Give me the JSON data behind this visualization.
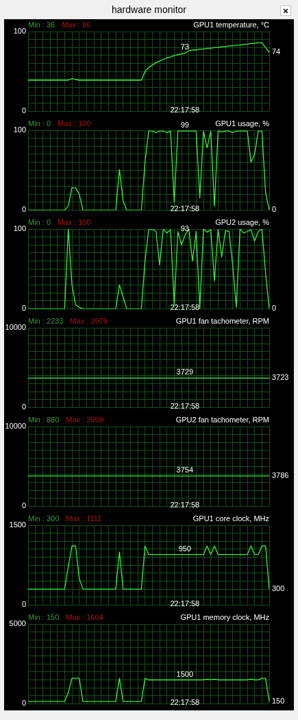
{
  "chart_data": [
    {
      "type": "other",
      "title": "hardware monitor"
    },
    {
      "type": "line",
      "title": "GPU1 temperature, °C",
      "categories": [
        null,
        null,
        null,
        null,
        null,
        null,
        null,
        null,
        null,
        null,
        null,
        null,
        null,
        null,
        null,
        null,
        null,
        null,
        null,
        null,
        null,
        null,
        null,
        null,
        null,
        null,
        null,
        null,
        null,
        null,
        null,
        null,
        null,
        null,
        null,
        null,
        null,
        null,
        null,
        null,
        null,
        null,
        null,
        null,
        null,
        null,
        null,
        null,
        null,
        null,
        null,
        null,
        null,
        null,
        null,
        null,
        null,
        null,
        null,
        null,
        null,
        null,
        null,
        null,
        null,
        null,
        null
      ],
      "series": [
        {
          "color": "#3cf03c",
          "values": [
            39,
            39,
            39,
            39,
            39,
            39,
            39,
            39,
            39,
            39,
            39,
            39,
            41,
            40,
            39,
            39,
            39,
            39,
            39,
            39,
            39,
            39,
            39,
            39,
            39,
            39,
            39,
            39,
            39,
            39,
            39,
            39,
            50,
            55,
            58,
            61,
            63,
            65,
            67,
            68,
            70,
            71,
            72,
            73,
            76,
            77,
            77,
            78,
            78,
            79,
            79,
            80,
            80,
            81,
            81,
            82,
            82,
            83,
            83,
            84,
            84,
            85,
            85,
            86,
            86,
            80,
            74
          ]
        }
      ],
      "ylim": [
        0,
        100
      ],
      "yticks": [
        0,
        {
          "value": 10,
          "label": null
        },
        {
          "value": 20,
          "label": null
        },
        {
          "value": 30,
          "label": null
        },
        {
          "value": 40,
          "label": null
        },
        {
          "value": 50,
          "label": null
        },
        {
          "value": 60,
          "label": null
        },
        {
          "value": 70,
          "label": null
        },
        {
          "value": 80,
          "label": null
        },
        {
          "value": 90,
          "label": null
        },
        100
      ],
      "grid": true,
      "annotations": [
        "Min : 36",
        "Max : 86",
        "22:17:58",
        "74",
        {
          "text": "73",
          "y": 73
        }
      ]
    },
    {
      "type": "line",
      "title": "GPU1 usage, %",
      "categories": [
        null,
        null,
        null,
        null,
        null,
        null,
        null,
        null,
        null,
        null,
        null,
        null,
        null,
        null,
        null,
        null,
        null,
        null,
        null,
        null,
        null,
        null,
        null,
        null,
        null,
        null,
        null,
        null,
        null,
        null,
        null,
        null,
        null,
        null,
        null,
        null,
        null,
        null,
        null,
        null,
        null,
        null,
        null,
        null,
        null,
        null,
        null,
        null,
        null,
        null,
        null,
        null,
        null,
        null,
        null,
        null,
        null,
        null,
        null,
        null,
        null,
        null,
        null,
        null,
        null,
        null,
        null
      ],
      "series": [
        {
          "color": "#3cf03c",
          "values": [
            0,
            0,
            0,
            0,
            0,
            0,
            0,
            0,
            0,
            0,
            0,
            5,
            28,
            28,
            20,
            0,
            0,
            0,
            0,
            0,
            0,
            0,
            0,
            0,
            0,
            51,
            12,
            0,
            0,
            0,
            0,
            0,
            60,
            99,
            99,
            97,
            99,
            99,
            97,
            99,
            10,
            99,
            99,
            99,
            99,
            99,
            99,
            15,
            99,
            78,
            99,
            5,
            99,
            98,
            99,
            99,
            97,
            99,
            99,
            99,
            99,
            60,
            70,
            99,
            99,
            22,
            0
          ]
        }
      ],
      "ylim": [
        0,
        100
      ],
      "yticks": [
        0,
        {
          "value": 10,
          "label": null
        },
        {
          "value": 20,
          "label": null
        },
        {
          "value": 30,
          "label": null
        },
        {
          "value": 40,
          "label": null
        },
        {
          "value": 50,
          "label": null
        },
        {
          "value": 60,
          "label": null
        },
        {
          "value": 70,
          "label": null
        },
        {
          "value": 80,
          "label": null
        },
        {
          "value": 90,
          "label": null
        },
        100
      ],
      "grid": true,
      "annotations": [
        "Min : 0",
        "Max : 100",
        "22:17:58",
        "0",
        {
          "text": "99",
          "y": 99
        }
      ]
    },
    {
      "type": "line",
      "title": "GPU2 usage, %",
      "categories": [
        null,
        null,
        null,
        null,
        null,
        null,
        null,
        null,
        null,
        null,
        null,
        null,
        null,
        null,
        null,
        null,
        null,
        null,
        null,
        null,
        null,
        null,
        null,
        null,
        null,
        null,
        null,
        null,
        null,
        null,
        null,
        null,
        null,
        null,
        null,
        null,
        null,
        null,
        null,
        null,
        null,
        null,
        null,
        null,
        null,
        null,
        null,
        null,
        null,
        null,
        null,
        null,
        null,
        null,
        null,
        null,
        null,
        null,
        null,
        null,
        null,
        null,
        null,
        null,
        null,
        null,
        null
      ],
      "series": [
        {
          "color": "#3cf03c",
          "values": [
            0,
            0,
            0,
            0,
            0,
            0,
            0,
            0,
            0,
            0,
            0,
            100,
            30,
            5,
            2,
            0,
            0,
            0,
            0,
            0,
            0,
            0,
            0,
            0,
            0,
            30,
            15,
            0,
            0,
            0,
            0,
            0,
            60,
            99,
            100,
            97,
            55,
            100,
            95,
            99,
            5,
            97,
            80,
            93,
            100,
            60,
            97,
            0,
            100,
            96,
            99,
            35,
            100,
            65,
            98,
            97,
            55,
            2,
            100,
            95,
            97,
            99,
            85,
            97,
            100,
            45,
            0
          ]
        }
      ],
      "ylim": [
        0,
        100
      ],
      "yticks": [
        0,
        {
          "value": 10,
          "label": null
        },
        {
          "value": 20,
          "label": null
        },
        {
          "value": 30,
          "label": null
        },
        {
          "value": 40,
          "label": null
        },
        {
          "value": 50,
          "label": null
        },
        {
          "value": 60,
          "label": null
        },
        {
          "value": 70,
          "label": null
        },
        {
          "value": 80,
          "label": null
        },
        {
          "value": 90,
          "label": null
        },
        100
      ],
      "grid": true,
      "annotations": [
        "Min : 0",
        "Max : 100",
        "22:17:58",
        "0",
        {
          "text": "93",
          "y": 93
        }
      ]
    },
    {
      "type": "line",
      "title": "GPU1 fan tachometer, RPM",
      "categories": [
        null,
        null,
        null,
        null,
        null,
        null,
        null,
        null,
        null,
        null,
        null,
        null,
        null,
        null,
        null,
        null,
        null,
        null,
        null,
        null,
        null,
        null,
        null,
        null,
        null,
        null,
        null,
        null,
        null,
        null,
        null,
        null,
        null,
        null,
        null,
        null,
        null,
        null,
        null,
        null,
        null,
        null,
        null,
        null,
        null,
        null,
        null,
        null,
        null,
        null,
        null,
        null,
        null,
        null,
        null,
        null,
        null,
        null,
        null,
        null,
        null,
        null,
        null,
        null,
        null,
        null,
        null
      ],
      "series": [
        {
          "color": "#3cf03c",
          "values": [
            3700,
            3700,
            3700,
            3700,
            3700,
            3700,
            3700,
            3700,
            3700,
            3700,
            3700,
            3700,
            3700,
            3700,
            3700,
            3700,
            3700,
            3700,
            3700,
            3700,
            3700,
            3700,
            3700,
            3700,
            3700,
            3700,
            3700,
            3700,
            3700,
            3700,
            3700,
            3700,
            3700,
            3700,
            3700,
            3700,
            3700,
            3700,
            3700,
            3700,
            3700,
            3700,
            3700,
            3700,
            3700,
            3700,
            3700,
            3700,
            3700,
            3700,
            3700,
            3700,
            3700,
            3700,
            3700,
            3700,
            3700,
            3700,
            3700,
            3700,
            3700,
            3700,
            3700,
            3700,
            3700,
            3700,
            3700
          ]
        }
      ],
      "ylim": [
        0,
        10000
      ],
      "yticks": [
        0,
        {
          "value": 1000,
          "label": null
        },
        {
          "value": 2000,
          "label": null
        },
        {
          "value": 3000,
          "label": null
        },
        {
          "value": 4000,
          "label": null
        },
        {
          "value": 5000,
          "label": null
        },
        {
          "value": 6000,
          "label": null
        },
        {
          "value": 7000,
          "label": null
        },
        {
          "value": 8000,
          "label": null
        },
        {
          "value": 9000,
          "label": null
        },
        10000
      ],
      "grid": true,
      "annotations": [
        "Min : 2233",
        "Max : 3979",
        "22:17:58",
        "3723",
        {
          "text": "3729",
          "y": 3700
        }
      ]
    },
    {
      "type": "line",
      "title": "GPU2 fan tachometer, RPM",
      "categories": [
        null,
        null,
        null,
        null,
        null,
        null,
        null,
        null,
        null,
        null,
        null,
        null,
        null,
        null,
        null,
        null,
        null,
        null,
        null,
        null,
        null,
        null,
        null,
        null,
        null,
        null,
        null,
        null,
        null,
        null,
        null,
        null,
        null,
        null,
        null,
        null,
        null,
        null,
        null,
        null,
        null,
        null,
        null,
        null,
        null,
        null,
        null,
        null,
        null,
        null,
        null,
        null,
        null,
        null,
        null,
        null,
        null,
        null,
        null,
        null,
        null,
        null,
        null,
        null,
        null,
        null,
        null
      ],
      "series": [
        {
          "color": "#3cf03c",
          "values": [
            3800,
            3800,
            3800,
            3800,
            3800,
            3800,
            3800,
            3800,
            3800,
            3800,
            3800,
            3800,
            3800,
            3800,
            3800,
            3800,
            3800,
            3800,
            3800,
            3800,
            3800,
            3800,
            3800,
            3800,
            3800,
            3800,
            3800,
            3800,
            3800,
            3800,
            3800,
            3800,
            3800,
            3800,
            3800,
            3800,
            3800,
            3800,
            3800,
            3800,
            3800,
            3800,
            3800,
            3800,
            3800,
            3800,
            3800,
            3800,
            3800,
            3800,
            3800,
            3800,
            3800,
            3800,
            3800,
            3800,
            3800,
            3800,
            3800,
            3800,
            3800,
            3800,
            3800,
            3800,
            3800,
            3800,
            3800
          ]
        }
      ],
      "ylim": [
        0,
        10000
      ],
      "yticks": [
        0,
        {
          "value": 1000,
          "label": null
        },
        {
          "value": 2000,
          "label": null
        },
        {
          "value": 3000,
          "label": null
        },
        {
          "value": 4000,
          "label": null
        },
        {
          "value": 5000,
          "label": null
        },
        {
          "value": 6000,
          "label": null
        },
        {
          "value": 7000,
          "label": null
        },
        {
          "value": 8000,
          "label": null
        },
        {
          "value": 9000,
          "label": null
        },
        10000
      ],
      "grid": true,
      "annotations": [
        "Min : 880",
        "Max : 3959",
        "22:17:58",
        "3786",
        {
          "text": "3754",
          "y": 3800
        }
      ]
    },
    {
      "type": "line",
      "title": "GPU1 core clock, MHz",
      "categories": [
        null,
        null,
        null,
        null,
        null,
        null,
        null,
        null,
        null,
        null,
        null,
        null,
        null,
        null,
        null,
        null,
        null,
        null,
        null,
        null,
        null,
        null,
        null,
        null,
        null,
        null,
        null,
        null,
        null,
        null,
        null,
        null,
        null,
        null,
        null,
        null,
        null,
        null,
        null,
        null,
        null,
        null,
        null,
        null,
        null,
        null,
        null,
        null,
        null,
        null,
        null,
        null,
        null,
        null,
        null,
        null,
        null,
        null,
        null,
        null,
        null,
        null,
        null,
        null,
        null,
        null,
        null
      ],
      "series": [
        {
          "color": "#3cf03c",
          "values": [
            300,
            300,
            300,
            300,
            300,
            300,
            300,
            300,
            300,
            300,
            300,
            720,
            1110,
            1110,
            500,
            300,
            300,
            300,
            300,
            300,
            300,
            300,
            300,
            300,
            300,
            1000,
            300,
            300,
            300,
            300,
            300,
            300,
            1110,
            950,
            950,
            950,
            950,
            950,
            950,
            950,
            950,
            950,
            950,
            950,
            950,
            950,
            950,
            950,
            950,
            1110,
            950,
            1110,
            950,
            950,
            950,
            950,
            950,
            950,
            950,
            950,
            950,
            1110,
            950,
            950,
            1110,
            1110,
            300
          ]
        }
      ],
      "ylim": [
        0,
        1500
      ],
      "yticks": [
        0,
        {
          "value": 150,
          "label": null
        },
        {
          "value": 300,
          "label": null
        },
        {
          "value": 450,
          "label": null
        },
        {
          "value": 600,
          "label": null
        },
        {
          "value": 750,
          "label": null
        },
        {
          "value": 900,
          "label": null
        },
        {
          "value": 1050,
          "label": null
        },
        {
          "value": 1200,
          "label": null
        },
        {
          "value": 1350,
          "label": null
        },
        1500
      ],
      "grid": true,
      "annotations": [
        "Min : 300",
        "Max : 1111",
        "22:17:58",
        "300",
        {
          "text": "950",
          "y": 950
        }
      ]
    },
    {
      "type": "line",
      "title": "GPU1 memory clock, MHz",
      "categories": [
        null,
        null,
        null,
        null,
        null,
        null,
        null,
        null,
        null,
        null,
        null,
        null,
        null,
        null,
        null,
        null,
        null,
        null,
        null,
        null,
        null,
        null,
        null,
        null,
        null,
        null,
        null,
        null,
        null,
        null,
        null,
        null,
        null,
        null,
        null,
        null,
        null,
        null,
        null,
        null,
        null,
        null,
        null,
        null,
        null,
        null,
        null,
        null,
        null,
        null,
        null,
        null,
        null,
        null,
        null,
        null,
        null,
        null,
        null,
        null,
        null,
        null,
        null,
        null,
        null,
        null,
        null
      ],
      "series": [
        {
          "color": "#3cf03c",
          "values": [
            150,
            150,
            150,
            150,
            150,
            150,
            150,
            150,
            150,
            150,
            150,
            700,
            1600,
            1600,
            1600,
            150,
            150,
            150,
            150,
            150,
            150,
            150,
            150,
            150,
            150,
            1600,
            150,
            150,
            150,
            150,
            150,
            150,
            1600,
            1500,
            1500,
            1500,
            1500,
            1500,
            1500,
            1500,
            1500,
            1500,
            1500,
            1500,
            1500,
            1500,
            1500,
            1500,
            1500,
            1550,
            1500,
            1550,
            1500,
            1500,
            1500,
            1500,
            1500,
            1500,
            1500,
            1500,
            1500,
            1550,
            1500,
            1500,
            1600,
            1600,
            150
          ]
        }
      ],
      "ylim": [
        0,
        5000
      ],
      "yticks": [
        0,
        {
          "value": 500,
          "label": null
        },
        {
          "value": 1000,
          "label": null
        },
        {
          "value": 1500,
          "label": null
        },
        {
          "value": 2000,
          "label": null
        },
        {
          "value": 2500,
          "label": null
        },
        {
          "value": 3000,
          "label": null
        },
        {
          "value": 3500,
          "label": null
        },
        {
          "value": 4000,
          "label": null
        },
        {
          "value": 4500,
          "label": null
        },
        5000
      ],
      "grid": true,
      "annotations": [
        "Min : 150",
        "Max : 1604",
        "22:17:58",
        "150",
        {
          "text": "1500",
          "y": 1500
        }
      ]
    }
  ]
}
